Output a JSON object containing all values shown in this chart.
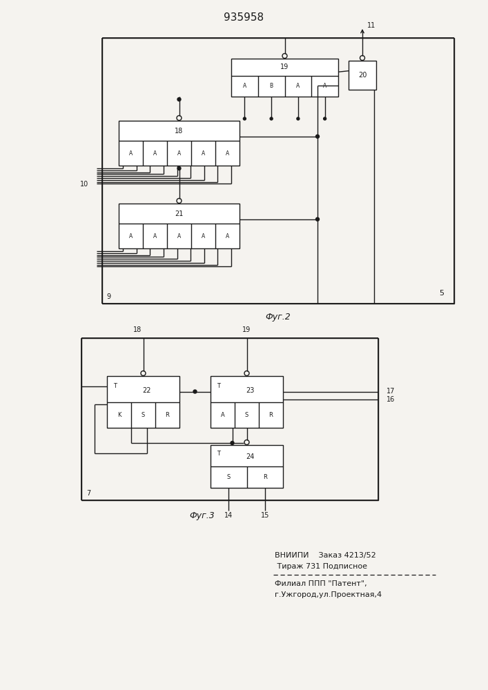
{
  "title": "935958",
  "fig2_label": "Фуг.2",
  "fig3_label": "Фуг.3",
  "footer_line1": "ВНИИПИ    Заказ 4213/52",
  "footer_line2": " Тираж 731 Подписное",
  "footer_line3": "Филиал ППП \"Патент\",",
  "footer_line4": "г.Ужгород,ул.Проектная,4",
  "bg_color": "#f5f3ef",
  "line_color": "#1a1a1a"
}
